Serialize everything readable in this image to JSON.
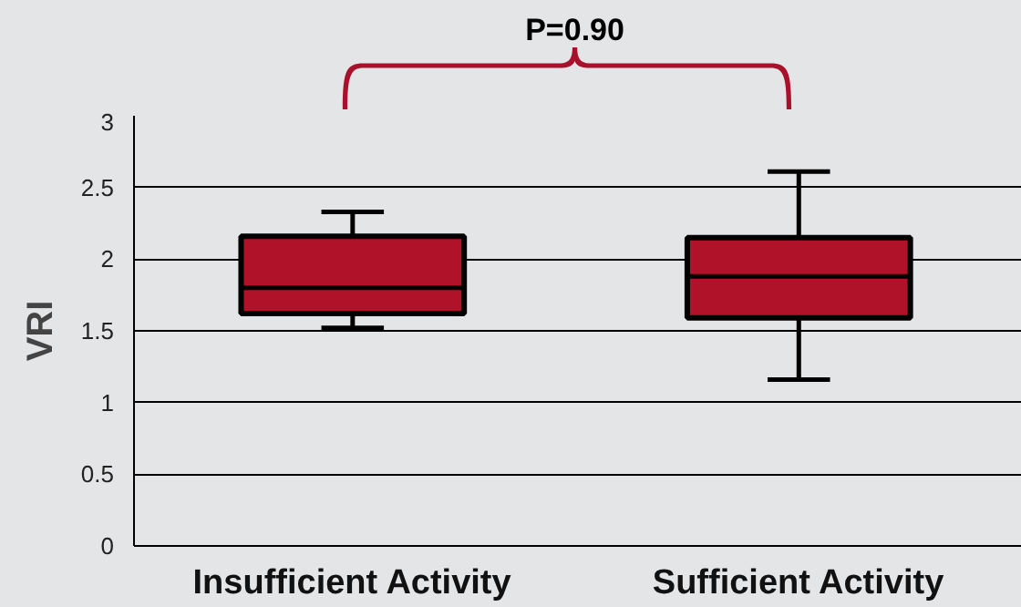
{
  "chart_data": {
    "type": "box",
    "ylabel": "VRI",
    "categories": [
      "Insufficient Activity",
      "Sufficient Activity"
    ],
    "boxes": [
      {
        "low": 1.52,
        "q1": 1.62,
        "median": 1.8,
        "q3": 2.16,
        "high": 2.33
      },
      {
        "low": 1.16,
        "q1": 1.59,
        "median": 1.88,
        "q3": 2.15,
        "high": 2.61
      }
    ],
    "color": "#b01229",
    "ylim": [
      0,
      3
    ],
    "yticks": [
      0,
      0.5,
      1,
      1.5,
      2,
      2.5,
      3
    ],
    "grid": "y",
    "annotations": [
      "P=0.90"
    ]
  }
}
